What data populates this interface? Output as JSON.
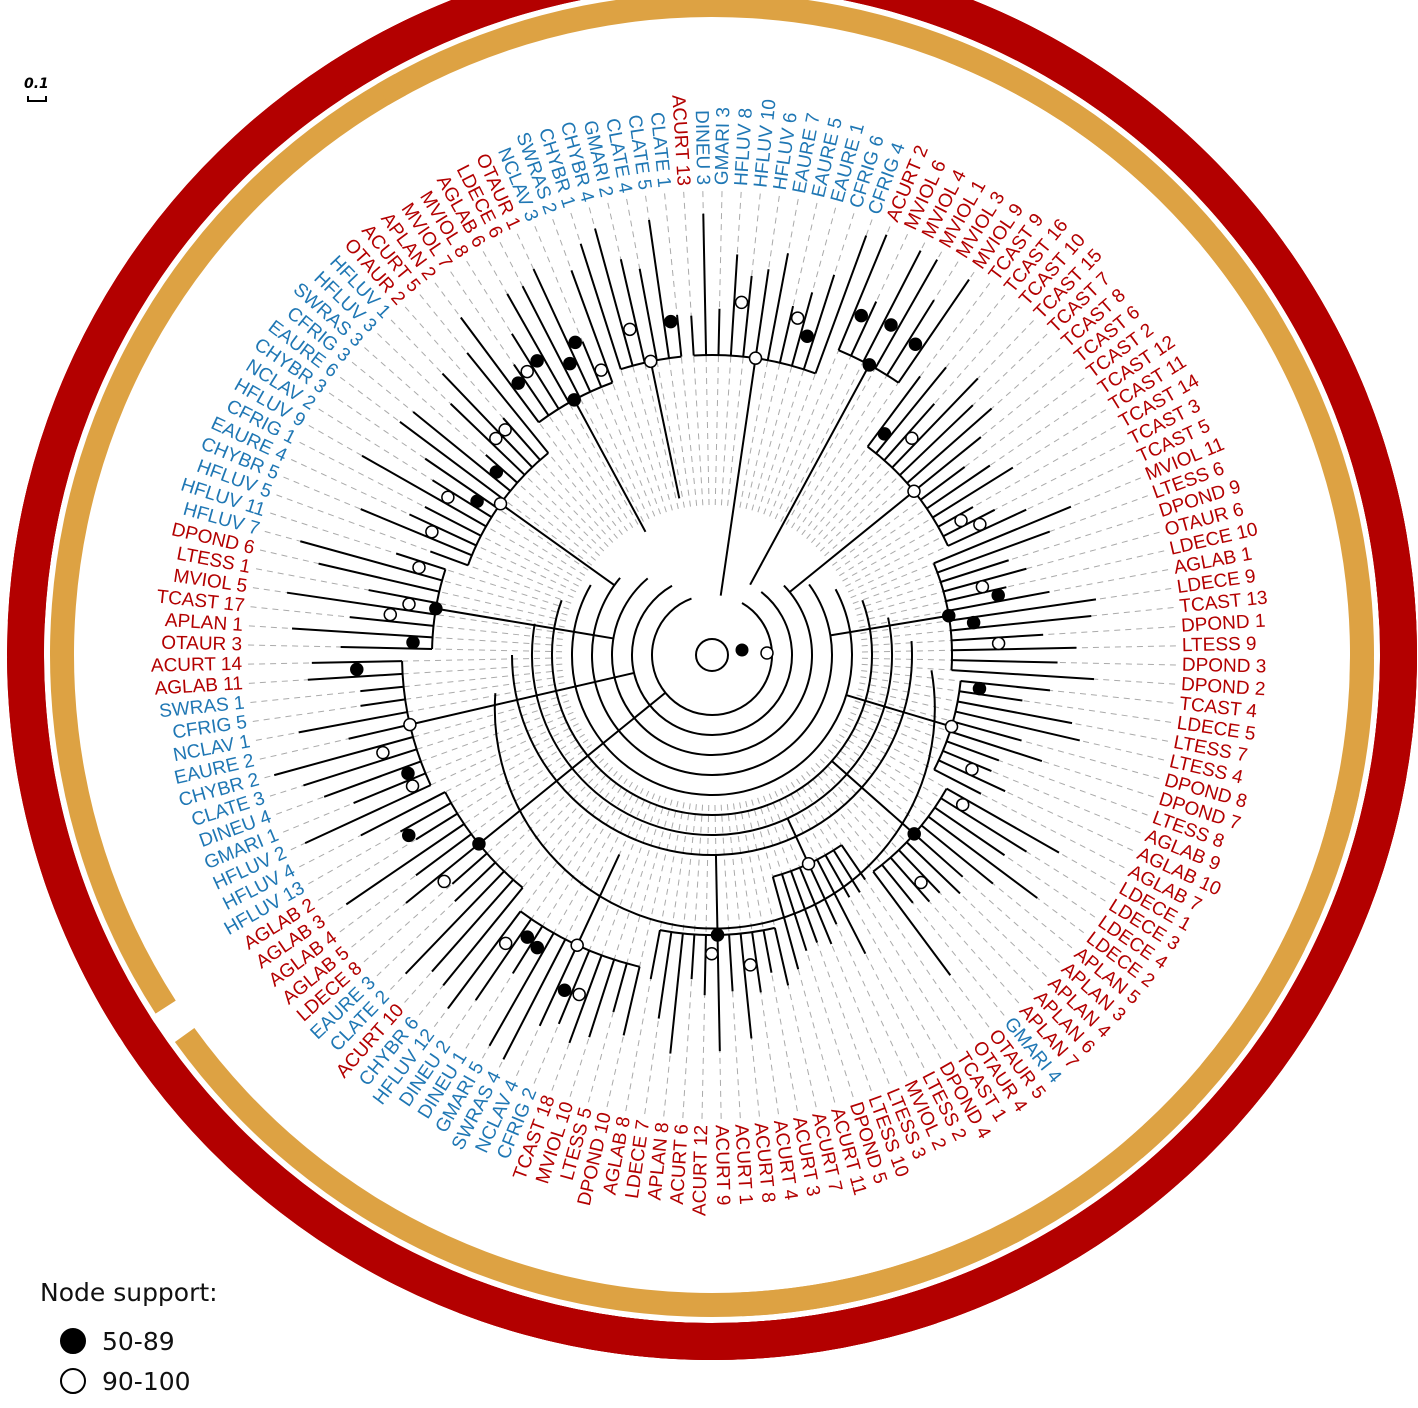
{
  "colors": {
    "group_red": "#b30000",
    "group_blue": "#1f77b4",
    "ring_red": "#b30000",
    "ring_orange": "#dda243",
    "branch": "#000000",
    "guide": "#aaaaaa"
  },
  "scale_bar": {
    "label": "0.1"
  },
  "legend": {
    "title": "Node support:",
    "items": [
      {
        "symbol": "filled-circle",
        "label": "50-89"
      },
      {
        "symbol": "open-circle",
        "label": "90-100"
      }
    ]
  },
  "leaves": [
    {
      "n": "ACURT 13",
      "g": "r"
    },
    {
      "n": "DINEU 3",
      "g": "b"
    },
    {
      "n": "GMARI 3",
      "g": "b"
    },
    {
      "n": "HFLUV 8",
      "g": "b"
    },
    {
      "n": "HFLUV 10",
      "g": "b"
    },
    {
      "n": "HFLUV 6",
      "g": "b"
    },
    {
      "n": "EAURE 7",
      "g": "b"
    },
    {
      "n": "EAURE 5",
      "g": "b"
    },
    {
      "n": "EAURE 1",
      "g": "b"
    },
    {
      "n": "CFRIG 6",
      "g": "b"
    },
    {
      "n": "CFRIG 4",
      "g": "b"
    },
    {
      "n": "ACURT 2",
      "g": "r"
    },
    {
      "n": "MVIOL 6",
      "g": "r"
    },
    {
      "n": "MVIOL 4",
      "g": "r"
    },
    {
      "n": "MVIOL 1",
      "g": "r"
    },
    {
      "n": "MVIOL 3",
      "g": "r"
    },
    {
      "n": "MVIOL 9",
      "g": "r"
    },
    {
      "n": "TCAST 9",
      "g": "r"
    },
    {
      "n": "TCAST 16",
      "g": "r"
    },
    {
      "n": "TCAST 10",
      "g": "r"
    },
    {
      "n": "TCAST 15",
      "g": "r"
    },
    {
      "n": "TCAST 7",
      "g": "r"
    },
    {
      "n": "TCAST 8",
      "g": "r"
    },
    {
      "n": "TCAST 6",
      "g": "r"
    },
    {
      "n": "TCAST 2",
      "g": "r"
    },
    {
      "n": "TCAST 12",
      "g": "r"
    },
    {
      "n": "TCAST 11",
      "g": "r"
    },
    {
      "n": "TCAST 14",
      "g": "r"
    },
    {
      "n": "TCAST 3",
      "g": "r"
    },
    {
      "n": "TCAST 5",
      "g": "r"
    },
    {
      "n": "MVIOL 11",
      "g": "r"
    },
    {
      "n": "LTESS 6",
      "g": "r"
    },
    {
      "n": "DPOND 9",
      "g": "r"
    },
    {
      "n": "OTAUR 6",
      "g": "r"
    },
    {
      "n": "LDECE 10",
      "g": "r"
    },
    {
      "n": "AGLAB 1",
      "g": "r"
    },
    {
      "n": "LDECE 9",
      "g": "r"
    },
    {
      "n": "TCAST 13",
      "g": "r"
    },
    {
      "n": "DPOND 1",
      "g": "r"
    },
    {
      "n": "LTESS 9",
      "g": "r"
    },
    {
      "n": "DPOND 3",
      "g": "r"
    },
    {
      "n": "DPOND 2",
      "g": "r"
    },
    {
      "n": "TCAST 4",
      "g": "r"
    },
    {
      "n": "LDECE 5",
      "g": "r"
    },
    {
      "n": "LTESS 7",
      "g": "r"
    },
    {
      "n": "LTESS 4",
      "g": "r"
    },
    {
      "n": "DPOND 8",
      "g": "r"
    },
    {
      "n": "DPOND 7",
      "g": "r"
    },
    {
      "n": "LTESS 8",
      "g": "r"
    },
    {
      "n": "AGLAB 9",
      "g": "r"
    },
    {
      "n": "AGLAB 10",
      "g": "r"
    },
    {
      "n": "AGLAB 7",
      "g": "r"
    },
    {
      "n": "LDECE 1",
      "g": "r"
    },
    {
      "n": "LDECE 3",
      "g": "r"
    },
    {
      "n": "LDECE 4",
      "g": "r"
    },
    {
      "n": "LDECE 2",
      "g": "r"
    },
    {
      "n": "APLAN 5",
      "g": "r"
    },
    {
      "n": "APLAN 3",
      "g": "r"
    },
    {
      "n": "APLAN 4",
      "g": "r"
    },
    {
      "n": "APLAN 6",
      "g": "r"
    },
    {
      "n": "APLAN 7",
      "g": "r"
    },
    {
      "n": "GMARI 4",
      "g": "b"
    },
    {
      "n": "OTAUR 5",
      "g": "r"
    },
    {
      "n": "OTAUR 4",
      "g": "r"
    },
    {
      "n": "TCAST 1",
      "g": "r"
    },
    {
      "n": "DPOND 4",
      "g": "r"
    },
    {
      "n": "LTESS 2",
      "g": "r"
    },
    {
      "n": "MVIOL 2",
      "g": "r"
    },
    {
      "n": "LTESS 3",
      "g": "r"
    },
    {
      "n": "LTESS 10",
      "g": "r"
    },
    {
      "n": "DPOND 5",
      "g": "r"
    },
    {
      "n": "ACURT 11",
      "g": "r"
    },
    {
      "n": "ACURT 7",
      "g": "r"
    },
    {
      "n": "ACURT 3",
      "g": "r"
    },
    {
      "n": "ACURT 4",
      "g": "r"
    },
    {
      "n": "ACURT 8",
      "g": "r"
    },
    {
      "n": "ACURT 1",
      "g": "r"
    },
    {
      "n": "ACURT 9",
      "g": "r"
    },
    {
      "n": "ACURT 12",
      "g": "r"
    },
    {
      "n": "ACURT 6",
      "g": "r"
    },
    {
      "n": "APLAN 8",
      "g": "r"
    },
    {
      "n": "LDECE 7",
      "g": "r"
    },
    {
      "n": "AGLAB 8",
      "g": "r"
    },
    {
      "n": "DPOND 10",
      "g": "r"
    },
    {
      "n": "LTESS 5",
      "g": "r"
    },
    {
      "n": "MVIOL 10",
      "g": "r"
    },
    {
      "n": "TCAST 18",
      "g": "r"
    },
    {
      "n": "CFRIG 2",
      "g": "b"
    },
    {
      "n": "NCLAV 4",
      "g": "b"
    },
    {
      "n": "SWRAS 4",
      "g": "b"
    },
    {
      "n": "GMARI 5",
      "g": "b"
    },
    {
      "n": "DINEU 1",
      "g": "b"
    },
    {
      "n": "DINEU 2",
      "g": "b"
    },
    {
      "n": "HFLUV 12",
      "g": "b"
    },
    {
      "n": "CHYBR 6",
      "g": "b"
    },
    {
      "n": "ACURT 10",
      "g": "r"
    },
    {
      "n": "CLATE 2",
      "g": "b"
    },
    {
      "n": "EAURE 3",
      "g": "b"
    },
    {
      "n": "LDECE 8",
      "g": "r"
    },
    {
      "n": "AGLAB 5",
      "g": "r"
    },
    {
      "n": "AGLAB 4",
      "g": "r"
    },
    {
      "n": "AGLAB 3",
      "g": "r"
    },
    {
      "n": "AGLAB 2",
      "g": "r"
    },
    {
      "n": "HFLUV 13",
      "g": "b"
    },
    {
      "n": "HFLUV 4",
      "g": "b"
    },
    {
      "n": "HFLUV 2",
      "g": "b"
    },
    {
      "n": "GMARI 1",
      "g": "b"
    },
    {
      "n": "DINEU 4",
      "g": "b"
    },
    {
      "n": "CLATE 3",
      "g": "b"
    },
    {
      "n": "CHYBR 2",
      "g": "b"
    },
    {
      "n": "EAURE 2",
      "g": "b"
    },
    {
      "n": "NCLAV 1",
      "g": "b"
    },
    {
      "n": "CFRIG 5",
      "g": "b"
    },
    {
      "n": "SWRAS 1",
      "g": "b"
    },
    {
      "n": "AGLAB 11",
      "g": "r"
    },
    {
      "n": "ACURT 14",
      "g": "r"
    },
    {
      "n": "OTAUR 3",
      "g": "r"
    },
    {
      "n": "APLAN 1",
      "g": "r"
    },
    {
      "n": "TCAST 17",
      "g": "r"
    },
    {
      "n": "MVIOL 5",
      "g": "r"
    },
    {
      "n": "LTESS 1",
      "g": "r"
    },
    {
      "n": "DPOND 6",
      "g": "r"
    },
    {
      "n": "HFLUV 7",
      "g": "b"
    },
    {
      "n": "HFLUV 11",
      "g": "b"
    },
    {
      "n": "HFLUV 5",
      "g": "b"
    },
    {
      "n": "CHYBR 5",
      "g": "b"
    },
    {
      "n": "EAURE 4",
      "g": "b"
    },
    {
      "n": "CFRIG 1",
      "g": "b"
    },
    {
      "n": "HFLUV 9",
      "g": "b"
    },
    {
      "n": "NCLAV 2",
      "g": "b"
    },
    {
      "n": "CHYBR 3",
      "g": "b"
    },
    {
      "n": "EAURE 6",
      "g": "b"
    },
    {
      "n": "CFRIG 3",
      "g": "b"
    },
    {
      "n": "SWRAS 3",
      "g": "b"
    },
    {
      "n": "HFLUV 3",
      "g": "b"
    },
    {
      "n": "HFLUV 1",
      "g": "b"
    },
    {
      "n": "OTAUR 2",
      "g": "r"
    },
    {
      "n": "ACURT 5",
      "g": "r"
    },
    {
      "n": "APLAN 2",
      "g": "r"
    },
    {
      "n": "MVIOL 7",
      "g": "r"
    },
    {
      "n": "MVIOL 8",
      "g": "r"
    },
    {
      "n": "AGLAB 6",
      "g": "r"
    },
    {
      "n": "LDECE 6",
      "g": "r"
    },
    {
      "n": "OTAUR 1",
      "g": "r"
    },
    {
      "n": "NCLAV 3",
      "g": "b"
    },
    {
      "n": "SWRAS 2",
      "g": "b"
    },
    {
      "n": "CHYBR 1",
      "g": "b"
    },
    {
      "n": "CHYBR 4",
      "g": "b"
    },
    {
      "n": "GMARI 2",
      "g": "b"
    },
    {
      "n": "CLATE 4",
      "g": "b"
    },
    {
      "n": "CLATE 5",
      "g": "b"
    },
    {
      "n": "CLATE 1",
      "g": "b"
    }
  ],
  "outer_ring": [
    {
      "from": "ACURT 2",
      "to": "TCAST 2"
    },
    {
      "from": "TCAST 12",
      "to": "TCAST 14"
    },
    {
      "from": "TCAST 3",
      "to": "MVIOL 11"
    },
    {
      "from": "LTESS 6",
      "to": "DPOND 9"
    },
    {
      "from": "OTAUR 6",
      "to": "AGLAB 1"
    },
    {
      "from": "TCAST 13",
      "to": "DPOND 1"
    },
    {
      "from": "DPOND 3",
      "to": "TCAST 4"
    },
    {
      "from": "LTESS 7",
      "to": "AGLAB 10"
    },
    {
      "from": "AGLAB 7",
      "to": "LDECE 3"
    },
    {
      "from": "APLAN 5",
      "to": "APLAN 3"
    },
    {
      "from": "APLAN 6",
      "to": "GMARI 4"
    },
    {
      "from": "OTAUR 4",
      "to": "TCAST 1"
    },
    {
      "from": "DPOND 4",
      "to": "LTESS 10"
    },
    {
      "from": "DPOND 5",
      "to": "ACURT 6"
    },
    {
      "from": "APLAN 8",
      "to": "TCAST 18"
    },
    {
      "from": "AGLAB 2",
      "to": "AGLAB 3"
    },
    {
      "from": "MVIOL 5",
      "to": "DPOND 6"
    },
    {
      "from": "APLAN 1",
      "to": "ACURT 14"
    },
    {
      "from": "MVIOL 8",
      "to": "OTAUR 1"
    }
  ],
  "inner_ring": [
    {
      "from": "ACURT 2",
      "to": "MVIOL 3"
    },
    {
      "from": "MVIOL 9",
      "to": "TCAST 8"
    },
    {
      "from": "TCAST 6",
      "to": "TCAST 11"
    },
    {
      "from": "DPOND 3",
      "to": "DPOND 3"
    },
    {
      "from": "LTESS 4",
      "to": "DPOND 8"
    },
    {
      "from": "AGLAB 7",
      "to": "LDECE 1"
    },
    {
      "from": "LDECE 2",
      "to": "APLAN 5"
    },
    {
      "from": "APLAN 4",
      "to": "APLAN 7"
    },
    {
      "from": "LTESS 2",
      "to": "LTESS 2"
    },
    {
      "from": "MVIOL 2",
      "to": "ACURT 1"
    },
    {
      "from": "AGLAB 2",
      "to": "AGLAB 4"
    },
    {
      "from": "AGLAB 6",
      "to": "AGLAB 6"
    }
  ]
}
